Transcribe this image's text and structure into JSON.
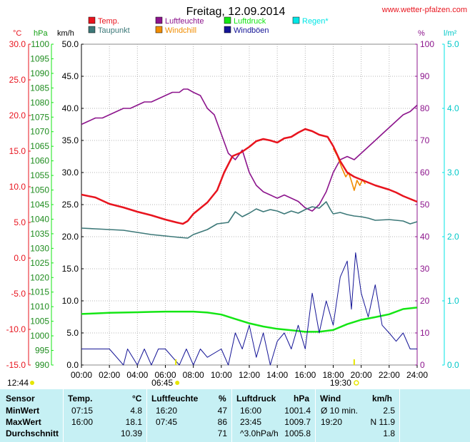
{
  "title": "Freitag, 12.09.2014",
  "site": "www.wetter-pfalzen.com",
  "units": {
    "temp": "°C",
    "pressure": "hPa",
    "wind": "km/h",
    "humidity": "%",
    "rain": "l/m²"
  },
  "legend": [
    {
      "label": "Temp.",
      "color": "#e8141e"
    },
    {
      "label": "Luftfeuchte",
      "color": "#8c148c"
    },
    {
      "label": "Luftdruck",
      "color": "#14e614"
    },
    {
      "label": "Regen*",
      "color": "#00e6e6"
    },
    {
      "label": "Taupunkt",
      "color": "#3c7878"
    },
    {
      "label": "Windchill",
      "color": "#f08c00"
    },
    {
      "label": "Windböen",
      "color": "#141496"
    }
  ],
  "sun": {
    "sunrise": "06:45",
    "sunset": "19:30",
    "daylength": "12:44"
  },
  "chart_data": {
    "type": "line",
    "title": "Freitag, 12.09.2014",
    "x_ticks": [
      "00:00",
      "02:00",
      "04:00",
      "06:00",
      "08:00",
      "10:00",
      "12:00",
      "14:00",
      "16:00",
      "18:00",
      "20:00",
      "22:00",
      "24:00"
    ],
    "axes": {
      "temp": {
        "unit": "°C",
        "min": -15,
        "max": 30,
        "ticks": [
          "30.0",
          "25.0",
          "20.0",
          "15.0",
          "10.0",
          "5.0",
          "0.0",
          "-5.0",
          "-10.0",
          "-15.0"
        ]
      },
      "pressure": {
        "unit": "hPa",
        "min": 990,
        "max": 1100,
        "ticks": [
          "1100",
          "1095",
          "1090",
          "1085",
          "1080",
          "1075",
          "1070",
          "1065",
          "1060",
          "1055",
          "1050",
          "1045",
          "1040",
          "1035",
          "1030",
          "1025",
          "1020",
          "1015",
          "1010",
          "1005",
          "1000",
          "995",
          "990"
        ]
      },
      "wind": {
        "unit": "km/h",
        "min": 0,
        "max": 50,
        "ticks": [
          "50.0",
          "45.0",
          "40.0",
          "35.0",
          "30.0",
          "25.0",
          "20.0",
          "15.0",
          "10.0",
          "5.0",
          "0.0"
        ]
      },
      "humidity": {
        "unit": "%",
        "min": 0,
        "max": 100,
        "ticks": [
          "100",
          "90",
          "80",
          "70",
          "60",
          "50",
          "40",
          "30",
          "20",
          "10",
          "0"
        ]
      },
      "rain": {
        "unit": "l/m²",
        "min": 0,
        "max": 5,
        "ticks": [
          "5.0",
          "4.0",
          "3.0",
          "2.0",
          "1.0",
          "0.0"
        ]
      }
    },
    "series": [
      {
        "name": "Temp.",
        "axis": "temp",
        "color": "#e8141e",
        "points": [
          [
            0,
            8.9
          ],
          [
            1,
            8.5
          ],
          [
            2,
            7.6
          ],
          [
            3,
            7.1
          ],
          [
            4,
            6.5
          ],
          [
            5,
            6.0
          ],
          [
            6,
            5.4
          ],
          [
            6.8,
            5.0
          ],
          [
            7.25,
            4.8
          ],
          [
            7.6,
            5.2
          ],
          [
            8,
            6.2
          ],
          [
            9,
            7.8
          ],
          [
            9.7,
            9.5
          ],
          [
            10.2,
            12.0
          ],
          [
            10.8,
            14.3
          ],
          [
            11.4,
            14.8
          ],
          [
            12,
            15.6
          ],
          [
            12.5,
            16.4
          ],
          [
            13,
            16.7
          ],
          [
            13.5,
            16.5
          ],
          [
            14,
            16.2
          ],
          [
            14.5,
            16.8
          ],
          [
            15,
            17.0
          ],
          [
            15.5,
            17.6
          ],
          [
            16,
            18.1
          ],
          [
            16.5,
            17.8
          ],
          [
            17,
            17.3
          ],
          [
            17.6,
            17.0
          ],
          [
            18,
            15.7
          ],
          [
            18.5,
            13.6
          ],
          [
            19,
            12.0
          ],
          [
            19.5,
            11.4
          ],
          [
            20,
            11.0
          ],
          [
            20.5,
            10.6
          ],
          [
            21,
            10.2
          ],
          [
            21.5,
            9.9
          ],
          [
            22,
            9.6
          ],
          [
            22.5,
            9.2
          ],
          [
            23,
            8.7
          ],
          [
            23.5,
            8.3
          ],
          [
            24,
            7.9
          ]
        ]
      },
      {
        "name": "Taupunkt",
        "axis": "temp",
        "color": "#3c7878",
        "points": [
          [
            0,
            4.2
          ],
          [
            1,
            4.1
          ],
          [
            2,
            4.0
          ],
          [
            3,
            3.9
          ],
          [
            4,
            3.6
          ],
          [
            5,
            3.3
          ],
          [
            6,
            3.1
          ],
          [
            7,
            2.9
          ],
          [
            7.6,
            2.8
          ],
          [
            8,
            3.3
          ],
          [
            9,
            4.0
          ],
          [
            9.7,
            4.8
          ],
          [
            10.5,
            5.0
          ],
          [
            11,
            6.5
          ],
          [
            11.5,
            5.8
          ],
          [
            12,
            6.3
          ],
          [
            12.5,
            6.9
          ],
          [
            13,
            6.5
          ],
          [
            13.5,
            6.8
          ],
          [
            14,
            6.6
          ],
          [
            14.5,
            6.2
          ],
          [
            15,
            6.6
          ],
          [
            15.5,
            6.3
          ],
          [
            16,
            6.8
          ],
          [
            16.5,
            7.2
          ],
          [
            17,
            7.0
          ],
          [
            17.5,
            7.9
          ],
          [
            17.8,
            6.8
          ],
          [
            18,
            6.2
          ],
          [
            18.5,
            6.4
          ],
          [
            19,
            6.1
          ],
          [
            19.5,
            5.9
          ],
          [
            20,
            5.8
          ],
          [
            20.5,
            5.6
          ],
          [
            21,
            5.3
          ],
          [
            22,
            5.4
          ],
          [
            23,
            5.2
          ],
          [
            23.5,
            4.8
          ],
          [
            24,
            5.1
          ]
        ]
      },
      {
        "name": "Luftfeuchte",
        "axis": "humidity",
        "color": "#8c148c",
        "points": [
          [
            0,
            75
          ],
          [
            0.5,
            76
          ],
          [
            1,
            77
          ],
          [
            1.5,
            77
          ],
          [
            2,
            78
          ],
          [
            2.5,
            79
          ],
          [
            3,
            80
          ],
          [
            3.5,
            80
          ],
          [
            4,
            81
          ],
          [
            4.5,
            82
          ],
          [
            5,
            82
          ],
          [
            5.5,
            83
          ],
          [
            6,
            84
          ],
          [
            6.5,
            85
          ],
          [
            7,
            85
          ],
          [
            7.3,
            86
          ],
          [
            7.6,
            86
          ],
          [
            8,
            85
          ],
          [
            8.5,
            84
          ],
          [
            9,
            80
          ],
          [
            9.5,
            78
          ],
          [
            10,
            72
          ],
          [
            10.5,
            66
          ],
          [
            11,
            64
          ],
          [
            11.5,
            67
          ],
          [
            12,
            60
          ],
          [
            12.5,
            56
          ],
          [
            13,
            54
          ],
          [
            13.5,
            53
          ],
          [
            14,
            52
          ],
          [
            14.5,
            53
          ],
          [
            15,
            52
          ],
          [
            15.5,
            51
          ],
          [
            16,
            49
          ],
          [
            16.5,
            48
          ],
          [
            17,
            50
          ],
          [
            17.5,
            54
          ],
          [
            18,
            60
          ],
          [
            18.5,
            64
          ],
          [
            19,
            65
          ],
          [
            19.5,
            64
          ],
          [
            20,
            66
          ],
          [
            20.5,
            68
          ],
          [
            21,
            70
          ],
          [
            21.5,
            72
          ],
          [
            22,
            74
          ],
          [
            22.5,
            76
          ],
          [
            23,
            78
          ],
          [
            23.5,
            79
          ],
          [
            24,
            81
          ]
        ]
      },
      {
        "name": "Luftdruck",
        "axis": "pressure",
        "color": "#14e614",
        "points": [
          [
            0,
            1007.5
          ],
          [
            1,
            1007.7
          ],
          [
            2,
            1007.9
          ],
          [
            3,
            1008.0
          ],
          [
            4,
            1008.1
          ],
          [
            5,
            1008.2
          ],
          [
            6,
            1008.3
          ],
          [
            7,
            1008.3
          ],
          [
            8,
            1008.3
          ],
          [
            9,
            1008.0
          ],
          [
            10,
            1007.3
          ],
          [
            11,
            1005.8
          ],
          [
            12,
            1004.3
          ],
          [
            13,
            1003.2
          ],
          [
            14,
            1002.4
          ],
          [
            15,
            1001.9
          ],
          [
            16,
            1001.4
          ],
          [
            17,
            1001.4
          ],
          [
            18,
            1002.0
          ],
          [
            19,
            1004.0
          ],
          [
            20,
            1005.5
          ],
          [
            21,
            1006.4
          ],
          [
            22,
            1007.4
          ],
          [
            23,
            1009.2
          ],
          [
            24,
            1009.7
          ]
        ]
      },
      {
        "name": "Windchill",
        "axis": "temp",
        "color": "#f08c00",
        "points": [
          [
            18.0,
            15.4
          ],
          [
            18.3,
            14.3
          ],
          [
            18.6,
            12.7
          ],
          [
            18.9,
            11.4
          ],
          [
            19.1,
            12.0
          ],
          [
            19.3,
            10.8
          ],
          [
            19.5,
            9.5
          ],
          [
            19.7,
            10.9
          ],
          [
            19.9,
            10.2
          ],
          [
            20.1,
            11.0
          ],
          [
            20.3,
            10.4
          ]
        ]
      },
      {
        "name": "Windböen",
        "axis": "wind",
        "color": "#141496",
        "points": [
          [
            0,
            2.5
          ],
          [
            1,
            2.5
          ],
          [
            2,
            2.5
          ],
          [
            3,
            0
          ],
          [
            3.3,
            2.5
          ],
          [
            4,
            0
          ],
          [
            4.5,
            2.5
          ],
          [
            5,
            0
          ],
          [
            5.5,
            2.5
          ],
          [
            6,
            2.5
          ],
          [
            7,
            0
          ],
          [
            7.5,
            2.5
          ],
          [
            8,
            0
          ],
          [
            8.5,
            2.5
          ],
          [
            9,
            1.2
          ],
          [
            10,
            2.5
          ],
          [
            10.5,
            0
          ],
          [
            11,
            5.0
          ],
          [
            11.5,
            2.5
          ],
          [
            12,
            6.2
          ],
          [
            12.5,
            1.2
          ],
          [
            13,
            5.0
          ],
          [
            13.5,
            0
          ],
          [
            14,
            3.7
          ],
          [
            14.5,
            5.0
          ],
          [
            15,
            2.5
          ],
          [
            15.5,
            6.2
          ],
          [
            16,
            2.5
          ],
          [
            16.5,
            11.2
          ],
          [
            17,
            5.0
          ],
          [
            17.5,
            10.0
          ],
          [
            18,
            6.2
          ],
          [
            18.5,
            13.7
          ],
          [
            19,
            16.2
          ],
          [
            19.3,
            8.7
          ],
          [
            19.6,
            17.5
          ],
          [
            20,
            11.2
          ],
          [
            20.5,
            7.5
          ],
          [
            21,
            12.5
          ],
          [
            21.5,
            6.2
          ],
          [
            22,
            5.0
          ],
          [
            22.5,
            3.7
          ],
          [
            23,
            5.0
          ],
          [
            23.5,
            2.5
          ],
          [
            24,
            2.5
          ]
        ]
      }
    ]
  },
  "table": {
    "headers": {
      "sensor": "Sensor",
      "temp": "Temp.",
      "temp_unit": "°C",
      "hum": "Luftfeuchte",
      "hum_unit": "%",
      "press": "Luftdruck",
      "press_unit": "hPa",
      "wind": "Wind",
      "wind_unit": "km/h"
    },
    "rows": [
      {
        "label": "MinWert",
        "t_time": "07:15",
        "t_val": "4.8",
        "h_time": "16:20",
        "h_val": "47",
        "p_time": "16:00",
        "p_val": "1001.4",
        "w_time": "Ø 10 min.",
        "w_val": "2.5"
      },
      {
        "label": "MaxWert",
        "t_time": "16:00",
        "t_val": "18.1",
        "h_time": "07:45",
        "h_val": "86",
        "p_time": "23:45",
        "p_val": "1009.7",
        "w_time": "19:20",
        "w_val": "N 11.9"
      },
      {
        "label": "Durchschnitt",
        "t_time": "",
        "t_val": "10.39",
        "h_time": "",
        "h_val": "71",
        "p_time": "^3.0hPa/h",
        "p_val": "1005.8",
        "w_time": "",
        "w_val": "1.8"
      }
    ]
  }
}
